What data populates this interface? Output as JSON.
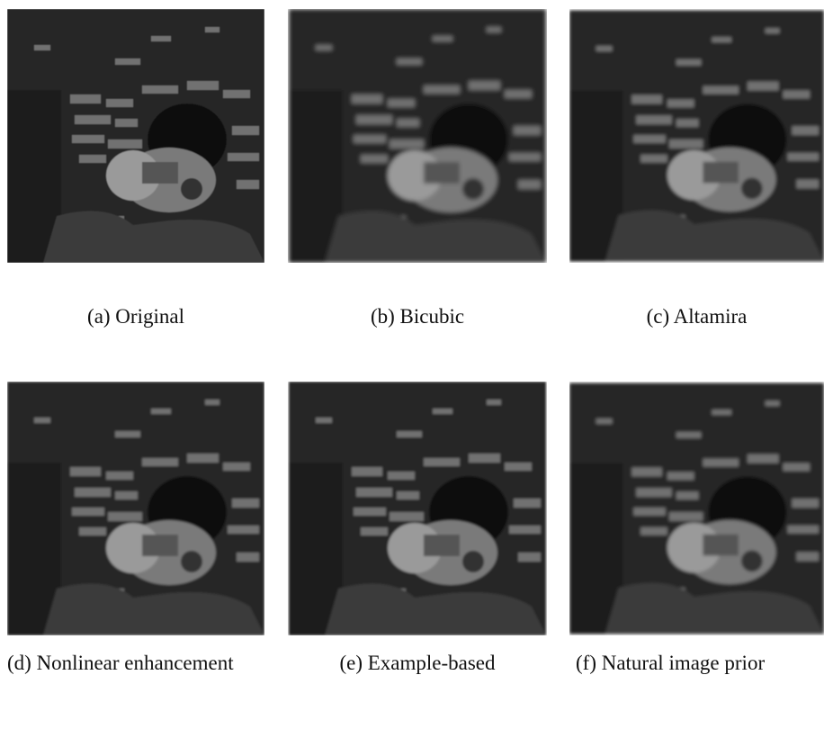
{
  "figure": {
    "panels": [
      {
        "caption": "(a) Original"
      },
      {
        "caption": "(b) Bicubic"
      },
      {
        "caption": "(c) Altamira"
      },
      {
        "caption": "(d) Nonlinear enhancement"
      },
      {
        "caption": "(e) Example-based"
      },
      {
        "caption": "(f) Natural image prior"
      }
    ]
  }
}
